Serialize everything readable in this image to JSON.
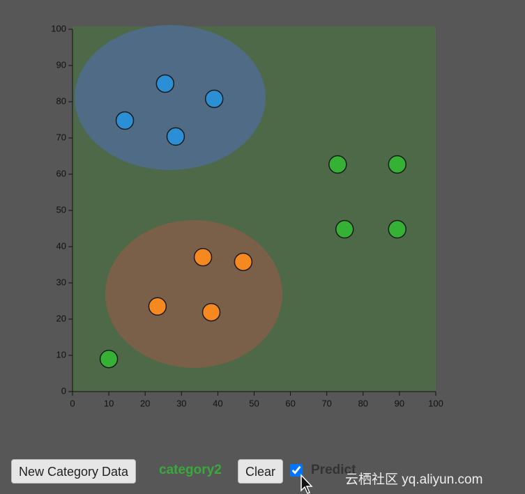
{
  "chart_data": {
    "type": "scatter",
    "series": [
      {
        "color": "#2b8fd6",
        "x": [
          25.5,
          39,
          14.4,
          28.4
        ],
        "values": [
          85,
          80.8,
          74.8,
          70.4
        ]
      },
      {
        "color": "#f5891f",
        "x": [
          35.9,
          47,
          23.4,
          38.2
        ],
        "values": [
          37.1,
          35.8,
          23.5,
          21.9
        ]
      },
      {
        "color": "#35b235",
        "x": [
          73,
          89.4,
          74.9,
          89.4,
          10
        ],
        "values": [
          62.7,
          62.7,
          44.8,
          44.8,
          9
        ]
      }
    ],
    "xlim": [
      0,
      100
    ],
    "ylim": [
      0,
      100
    ],
    "xticks": [
      0,
      10,
      20,
      30,
      40,
      50,
      60,
      70,
      80,
      90,
      100
    ],
    "yticks": [
      0,
      10,
      20,
      30,
      40,
      50,
      60,
      70,
      80,
      90,
      100
    ]
  },
  "controls": {
    "new_button": "New Category Data",
    "category": "category2",
    "clear_button": "Clear",
    "predict_checked": true,
    "predict_label": "Predict"
  },
  "watermark": "云栖社区 yq.aliyun.com"
}
